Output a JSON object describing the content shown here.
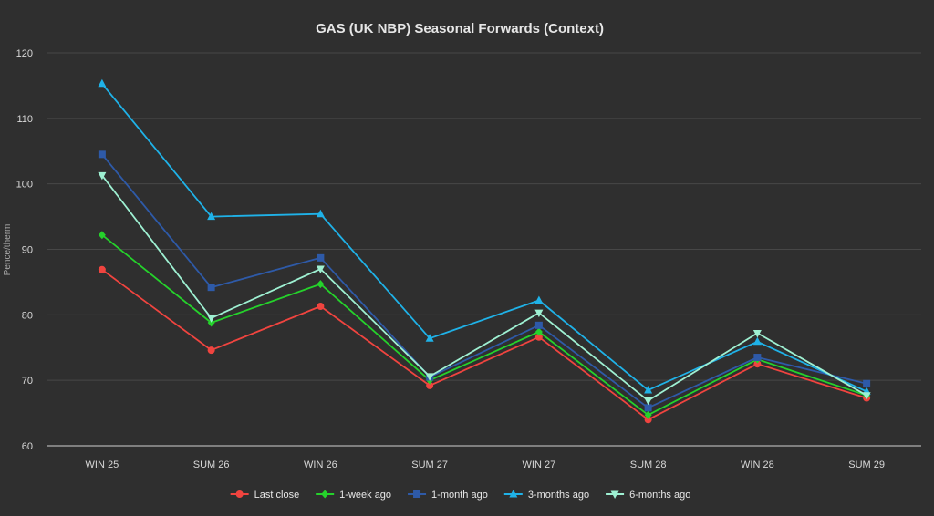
{
  "chart_data": {
    "type": "line",
    "title": "GAS (UK NBP) Seasonal Forwards (Context)",
    "xlabel": "",
    "ylabel": "Pence/therm",
    "ylim": [
      60,
      120
    ],
    "yticks": [
      60,
      70,
      80,
      90,
      100,
      110,
      120
    ],
    "grid": true,
    "legend_position": "bottom",
    "categories": [
      "WIN 25",
      "SUM 26",
      "WIN 26",
      "SUM 27",
      "WIN 27",
      "SUM 28",
      "WIN 28",
      "SUM 29"
    ],
    "series": [
      {
        "name": "Last close",
        "color": "#f0443f",
        "marker": "circle",
        "values": [
          86.9,
          74.6,
          81.3,
          69.2,
          76.6,
          64.0,
          72.5,
          67.3
        ]
      },
      {
        "name": "1-week ago",
        "color": "#25d22b",
        "marker": "diamond",
        "values": [
          92.2,
          78.8,
          84.7,
          70.0,
          77.4,
          64.7,
          73.2,
          67.7
        ]
      },
      {
        "name": "1-month ago",
        "color": "#2e5aa8",
        "marker": "square",
        "values": [
          104.5,
          84.2,
          88.7,
          70.5,
          78.4,
          65.8,
          73.5,
          69.5
        ]
      },
      {
        "name": "3-months ago",
        "color": "#1fb2e8",
        "marker": "triangle-up",
        "values": [
          115.3,
          95.0,
          95.4,
          76.4,
          82.2,
          68.5,
          75.9,
          68.3
        ]
      },
      {
        "name": "6-months ago",
        "color": "#9ef0d2",
        "marker": "triangle-down",
        "values": [
          101.3,
          79.5,
          87.0,
          70.6,
          80.3,
          66.9,
          77.2,
          67.7
        ]
      }
    ]
  }
}
